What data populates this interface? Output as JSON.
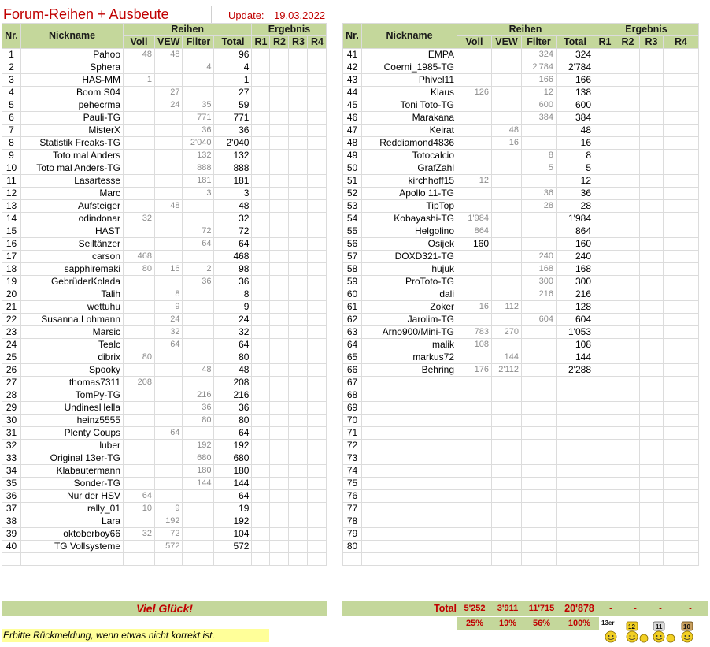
{
  "title": "Forum-Reihen + Ausbeute",
  "update_label": "Update:",
  "update_date": "19.03.2022",
  "headers": {
    "nr": "Nr.",
    "nickname": "Nickname",
    "reihen": "Reihen",
    "ergebnis": "Ergebnis",
    "voll": "Voll",
    "vew": "VEW",
    "filter": "Filter",
    "total": "Total",
    "r1": "R1",
    "r2": "R2",
    "r3": "R3",
    "r4": "R4"
  },
  "left_rows": [
    {
      "nr": "1",
      "nick": "Pahoo",
      "voll": "48",
      "vew": "48",
      "filter": "",
      "total": "96"
    },
    {
      "nr": "2",
      "nick": "Sphera",
      "voll": "",
      "vew": "",
      "filter": "4",
      "total": "4"
    },
    {
      "nr": "3",
      "nick": "HAS-MM",
      "voll": "1",
      "vew": "",
      "filter": "",
      "total": "1"
    },
    {
      "nr": "4",
      "nick": "Boom S04",
      "voll": "",
      "vew": "27",
      "filter": "",
      "total": "27"
    },
    {
      "nr": "5",
      "nick": "pehecrma",
      "voll": "",
      "vew": "24",
      "filter": "35",
      "total": "59"
    },
    {
      "nr": "6",
      "nick": "Pauli-TG",
      "voll": "",
      "vew": "",
      "filter": "771",
      "total": "771"
    },
    {
      "nr": "7",
      "nick": "MisterX",
      "voll": "",
      "vew": "",
      "filter": "36",
      "total": "36"
    },
    {
      "nr": "8",
      "nick": "Statistik Freaks-TG",
      "voll": "",
      "vew": "",
      "filter": "2'040",
      "total": "2'040"
    },
    {
      "nr": "9",
      "nick": "Toto mal Anders",
      "voll": "",
      "vew": "",
      "filter": "132",
      "total": "132"
    },
    {
      "nr": "10",
      "nick": "Toto mal Anders-TG",
      "voll": "",
      "vew": "",
      "filter": "888",
      "total": "888"
    },
    {
      "nr": "11",
      "nick": "Lasartesse",
      "voll": "",
      "vew": "",
      "filter": "181",
      "total": "181"
    },
    {
      "nr": "12",
      "nick": "Marc",
      "voll": "",
      "vew": "",
      "filter": "3",
      "total": "3"
    },
    {
      "nr": "13",
      "nick": "Aufsteiger",
      "voll": "",
      "vew": "48",
      "filter": "",
      "total": "48"
    },
    {
      "nr": "14",
      "nick": "odindonar",
      "voll": "32",
      "vew": "",
      "filter": "",
      "total": "32"
    },
    {
      "nr": "15",
      "nick": "HAST",
      "voll": "",
      "vew": "",
      "filter": "72",
      "total": "72"
    },
    {
      "nr": "16",
      "nick": "Seiltänzer",
      "voll": "",
      "vew": "",
      "filter": "64",
      "total": "64"
    },
    {
      "nr": "17",
      "nick": "carson",
      "voll": "468",
      "vew": "",
      "filter": "",
      "total": "468"
    },
    {
      "nr": "18",
      "nick": "sapphiremaki",
      "voll": "80",
      "vew": "16",
      "filter": "2",
      "total": "98"
    },
    {
      "nr": "19",
      "nick": "GebrüderKolada",
      "voll": "",
      "vew": "",
      "filter": "36",
      "total": "36"
    },
    {
      "nr": "20",
      "nick": "Talih",
      "voll": "",
      "vew": "8",
      "filter": "",
      "total": "8"
    },
    {
      "nr": "21",
      "nick": "wettuhu",
      "voll": "",
      "vew": "9",
      "filter": "",
      "total": "9"
    },
    {
      "nr": "22",
      "nick": "Susanna.Lohmann",
      "voll": "",
      "vew": "24",
      "filter": "",
      "total": "24"
    },
    {
      "nr": "23",
      "nick": "Marsic",
      "voll": "",
      "vew": "32",
      "filter": "",
      "total": "32"
    },
    {
      "nr": "24",
      "nick": "Tealc",
      "voll": "",
      "vew": "64",
      "filter": "",
      "total": "64"
    },
    {
      "nr": "25",
      "nick": "dibrix",
      "voll": "80",
      "vew": "",
      "filter": "",
      "total": "80"
    },
    {
      "nr": "26",
      "nick": "Spooky",
      "voll": "",
      "vew": "",
      "filter": "48",
      "total": "48"
    },
    {
      "nr": "27",
      "nick": "thomas7311",
      "voll": "208",
      "vew": "",
      "filter": "",
      "total": "208"
    },
    {
      "nr": "28",
      "nick": "TomPy-TG",
      "voll": "",
      "vew": "",
      "filter": "216",
      "total": "216"
    },
    {
      "nr": "29",
      "nick": "UndinesHella",
      "voll": "",
      "vew": "",
      "filter": "36",
      "total": "36"
    },
    {
      "nr": "30",
      "nick": "heinz5555",
      "voll": "",
      "vew": "",
      "filter": "80",
      "total": "80"
    },
    {
      "nr": "31",
      "nick": "Plenty Coups",
      "voll": "",
      "vew": "64",
      "filter": "",
      "total": "64"
    },
    {
      "nr": "32",
      "nick": "luber",
      "voll": "",
      "vew": "",
      "filter": "192",
      "total": "192"
    },
    {
      "nr": "33",
      "nick": "Original 13er-TG",
      "voll": "",
      "vew": "",
      "filter": "680",
      "total": "680"
    },
    {
      "nr": "34",
      "nick": "Klabautermann",
      "voll": "",
      "vew": "",
      "filter": "180",
      "total": "180"
    },
    {
      "nr": "35",
      "nick": "Sonder-TG",
      "voll": "",
      "vew": "",
      "filter": "144",
      "total": "144"
    },
    {
      "nr": "36",
      "nick": "Nur der HSV",
      "voll": "64",
      "vew": "",
      "filter": "",
      "total": "64"
    },
    {
      "nr": "37",
      "nick": "rally_01",
      "voll": "10",
      "vew": "9",
      "filter": "",
      "total": "19"
    },
    {
      "nr": "38",
      "nick": "Lara",
      "voll": "",
      "vew": "192",
      "filter": "",
      "total": "192"
    },
    {
      "nr": "39",
      "nick": "oktoberboy66",
      "voll": "32",
      "vew": "72",
      "filter": "",
      "total": "104"
    },
    {
      "nr": "40",
      "nick": "TG Vollsysteme",
      "voll": "",
      "vew": "572",
      "filter": "",
      "total": "572"
    }
  ],
  "right_rows": [
    {
      "nr": "41",
      "nick": "EMPA",
      "voll": "",
      "vew": "",
      "filter": "324",
      "total": "324"
    },
    {
      "nr": "42",
      "nick": "Coerni_1985-TG",
      "voll": "",
      "vew": "",
      "filter": "2'784",
      "total": "2'784"
    },
    {
      "nr": "43",
      "nick": "Phivel11",
      "voll": "",
      "vew": "",
      "filter": "166",
      "total": "166"
    },
    {
      "nr": "44",
      "nick": "Klaus",
      "voll": "126",
      "vew": "",
      "filter": "12",
      "total": "138"
    },
    {
      "nr": "45",
      "nick": "Toni Toto-TG",
      "voll": "",
      "vew": "",
      "filter": "600",
      "total": "600"
    },
    {
      "nr": "46",
      "nick": "Marakana",
      "voll": "",
      "vew": "",
      "filter": "384",
      "total": "384"
    },
    {
      "nr": "47",
      "nick": "Keirat",
      "voll": "",
      "vew": "48",
      "filter": "",
      "total": "48"
    },
    {
      "nr": "48",
      "nick": "Reddiamond4836",
      "voll": "",
      "vew": "16",
      "filter": "",
      "total": "16"
    },
    {
      "nr": "49",
      "nick": "Totocalcio",
      "voll": "",
      "vew": "",
      "filter": "8",
      "total": "8"
    },
    {
      "nr": "50",
      "nick": "GrafZahl",
      "voll": "",
      "vew": "",
      "filter": "5",
      "total": "5"
    },
    {
      "nr": "51",
      "nick": "kirchhoff15",
      "voll": "12",
      "vew": "",
      "filter": "",
      "total": "12"
    },
    {
      "nr": "52",
      "nick": "Apollo 11-TG",
      "voll": "",
      "vew": "",
      "filter": "36",
      "total": "36"
    },
    {
      "nr": "53",
      "nick": "TipTop",
      "voll": "",
      "vew": "",
      "filter": "28",
      "total": "28"
    },
    {
      "nr": "54",
      "nick": "Kobayashi-TG",
      "voll": "1'984",
      "vew": "",
      "filter": "",
      "total": "1'984"
    },
    {
      "nr": "55",
      "nick": "Helgolino",
      "voll": "864",
      "vew": "",
      "filter": "",
      "total": "864"
    },
    {
      "nr": "56",
      "nick": "Osijek",
      "voll": "160",
      "vew": "",
      "filter": "",
      "total": "160",
      "voll_dark": true
    },
    {
      "nr": "57",
      "nick": "DOXD321-TG",
      "voll": "",
      "vew": "",
      "filter": "240",
      "total": "240"
    },
    {
      "nr": "58",
      "nick": "hujuk",
      "voll": "",
      "vew": "",
      "filter": "168",
      "total": "168"
    },
    {
      "nr": "59",
      "nick": "ProToto-TG",
      "voll": "",
      "vew": "",
      "filter": "300",
      "total": "300"
    },
    {
      "nr": "60",
      "nick": "dali",
      "voll": "",
      "vew": "",
      "filter": "216",
      "total": "216"
    },
    {
      "nr": "61",
      "nick": "Zoker",
      "voll": "16",
      "vew": "112",
      "filter": "",
      "total": "128"
    },
    {
      "nr": "62",
      "nick": "Jarolim-TG",
      "voll": "",
      "vew": "",
      "filter": "604",
      "total": "604"
    },
    {
      "nr": "63",
      "nick": "Arno900/Mini-TG",
      "voll": "783",
      "vew": "270",
      "filter": "",
      "total": "1'053"
    },
    {
      "nr": "64",
      "nick": "malik",
      "voll": "108",
      "vew": "",
      "filter": "",
      "total": "108"
    },
    {
      "nr": "65",
      "nick": "markus72",
      "voll": "",
      "vew": "144",
      "filter": "",
      "total": "144"
    },
    {
      "nr": "66",
      "nick": "Behring",
      "voll": "176",
      "vew": "2'112",
      "filter": "",
      "total": "2'288"
    },
    {
      "nr": "67",
      "nick": "",
      "voll": "",
      "vew": "",
      "filter": "",
      "total": ""
    },
    {
      "nr": "68",
      "nick": "",
      "voll": "",
      "vew": "",
      "filter": "",
      "total": ""
    },
    {
      "nr": "69",
      "nick": "",
      "voll": "",
      "vew": "",
      "filter": "",
      "total": ""
    },
    {
      "nr": "70",
      "nick": "",
      "voll": "",
      "vew": "",
      "filter": "",
      "total": ""
    },
    {
      "nr": "71",
      "nick": "",
      "voll": "",
      "vew": "",
      "filter": "",
      "total": ""
    },
    {
      "nr": "72",
      "nick": "",
      "voll": "",
      "vew": "",
      "filter": "",
      "total": ""
    },
    {
      "nr": "73",
      "nick": "",
      "voll": "",
      "vew": "",
      "filter": "",
      "total": ""
    },
    {
      "nr": "74",
      "nick": "",
      "voll": "",
      "vew": "",
      "filter": "",
      "total": ""
    },
    {
      "nr": "75",
      "nick": "",
      "voll": "",
      "vew": "",
      "filter": "",
      "total": ""
    },
    {
      "nr": "76",
      "nick": "",
      "voll": "",
      "vew": "",
      "filter": "",
      "total": ""
    },
    {
      "nr": "77",
      "nick": "",
      "voll": "",
      "vew": "",
      "filter": "",
      "total": ""
    },
    {
      "nr": "78",
      "nick": "",
      "voll": "",
      "vew": "",
      "filter": "",
      "total": ""
    },
    {
      "nr": "79",
      "nick": "",
      "voll": "",
      "vew": "",
      "filter": "",
      "total": ""
    },
    {
      "nr": "80",
      "nick": "",
      "voll": "",
      "vew": "",
      "filter": "",
      "total": ""
    }
  ],
  "footer": {
    "gluck": "Viel Glück!",
    "total_label": "Total",
    "total_voll": "5'252",
    "total_vew": "3'911",
    "total_filter": "11'715",
    "total_total": "20'878",
    "total_r1": "-",
    "total_r2": "-",
    "total_r3": "-",
    "total_r4": "-",
    "pct_voll": "25%",
    "pct_vew": "19%",
    "pct_filter": "56%",
    "pct_total": "100%",
    "note": "Erbitte Rückmeldung, wenn etwas nicht korrekt ist.",
    "trophy_labels": [
      "13er",
      "12",
      "11",
      "10"
    ]
  },
  "colors": {
    "header_green": "#c4d79b",
    "accent_red": "#c00000",
    "note_yellow": "#ffff99",
    "muted_gray": "#8c8c8c"
  }
}
